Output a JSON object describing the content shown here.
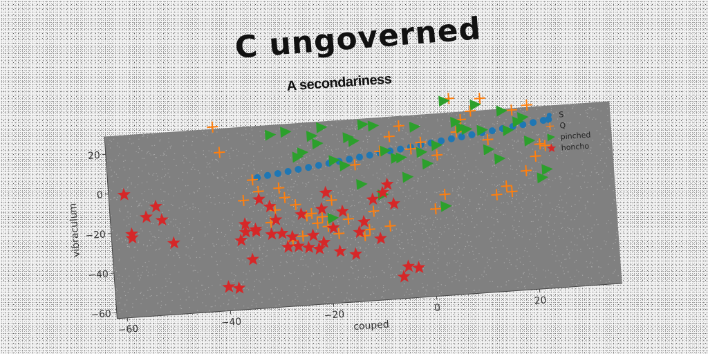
{
  "title": "C ungoverned",
  "subtitle": "A secondariness",
  "chart_data": {
    "type": "scatter",
    "title": "C ungoverned",
    "subtitle": "A secondariness",
    "xlabel": "couped",
    "ylabel": "vibraculum",
    "xlim": [
      -62,
      36
    ],
    "ylim": [
      -63,
      29
    ],
    "xticks": [
      -60,
      -40,
      -20,
      0,
      20
    ],
    "yticks": [
      -60,
      -40,
      -20,
      0,
      20
    ],
    "grid": false,
    "legend_position": "top-right",
    "series": [
      {
        "name": "S",
        "color": "#1f77b4",
        "marker": "circle",
        "x": [
          -33,
          -31,
          -29,
          -27,
          -25,
          -23,
          -21,
          -19,
          -17,
          -15,
          -13,
          -11,
          -9,
          -7,
          -5,
          -3,
          -1,
          1,
          3,
          5,
          7,
          9,
          11,
          13,
          15,
          17,
          19,
          21,
          23,
          24
        ],
        "y": [
          3,
          3.7,
          4.3,
          5,
          5.7,
          6.3,
          7,
          7.7,
          8.3,
          9,
          9.7,
          10.3,
          11,
          11.7,
          12.3,
          13,
          13.7,
          14.3,
          15,
          15.7,
          16.3,
          17,
          17.7,
          18.3,
          19,
          19.7,
          20.3,
          21,
          21.7,
          22
        ]
      },
      {
        "name": "Q",
        "color": "#ff7f0e",
        "marker": "plus",
        "x": [
          -41,
          -40,
          -34,
          -33,
          -30,
          -28,
          -27,
          -25,
          -23,
          -22,
          -20,
          -18,
          -16,
          -13,
          -11,
          -9,
          -7,
          -5,
          -3,
          -1,
          1,
          3,
          5,
          7,
          9,
          11,
          13,
          15,
          17,
          19,
          21,
          23,
          -36,
          -31,
          -29,
          -24,
          -19,
          -14,
          -8,
          2,
          6,
          12,
          16,
          20,
          22,
          -26,
          -21,
          -12
        ],
        "y": [
          30,
          17,
          2,
          -4,
          -14,
          -8,
          -30,
          -28,
          -17,
          -22,
          -24,
          -28,
          -21,
          -30,
          -18,
          12,
          19,
          24,
          12,
          15,
          -19,
          -12,
          36,
          25,
          29,
          35,
          -14,
          -10,
          28,
          -3,
          4,
          9,
          -8,
          -20,
          -3,
          -18,
          -11,
          6,
          -26,
          8,
          19,
          14,
          -13,
          30,
          10,
          -12,
          -19,
          -27
        ]
      },
      {
        "name": "pinched",
        "color": "#2ca02c",
        "marker": "triangle-right",
        "x": [
          -30,
          -27,
          -25,
          -22,
          -21,
          -18,
          -15,
          -12,
          -10,
          -8,
          -6,
          -4,
          -2,
          0,
          2,
          4,
          6,
          8,
          10,
          12,
          14,
          16,
          18,
          20,
          22,
          -24,
          -20,
          -16,
          -13,
          -9,
          -5,
          -1,
          3,
          7,
          11,
          15,
          19,
          23,
          -19,
          -14
        ],
        "y": [
          24,
          25,
          12,
          22,
          18,
          9,
          20,
          26,
          25,
          12,
          8,
          -2,
          23,
          4,
          13,
          35,
          24,
          20,
          32,
          9,
          4,
          18,
          22,
          12,
          -7,
          14,
          26,
          6,
          -4,
          -10,
          8,
          10,
          -18,
          21,
          19,
          28,
          24,
          -3,
          -20,
          18
        ]
      },
      {
        "name": "honcho",
        "color": "#d62728",
        "marker": "star",
        "x": [
          -59,
          -58,
          -58,
          -55,
          -53,
          -52,
          -50,
          -40,
          -38,
          -37,
          -36,
          -35,
          -34,
          -33,
          -31,
          -30,
          -29,
          -28,
          -27,
          -25,
          -24,
          -22,
          -21,
          -20,
          -19,
          -17,
          -15,
          -13,
          -11,
          -9,
          -8,
          -7,
          -5,
          -34,
          -36,
          -31,
          -26,
          -23,
          -21,
          -18,
          -14,
          -10,
          -6,
          -3
        ],
        "y": [
          -1,
          -21,
          -23,
          -13,
          -8,
          -15,
          -27,
          -51,
          -52,
          -28,
          -20,
          -38,
          -24,
          -8,
          -12,
          -19,
          -26,
          -33,
          -28,
          -17,
          -34,
          -35,
          -15,
          -7,
          -25,
          -17,
          -39,
          -23,
          -12,
          -9,
          -5,
          -15,
          -47,
          -23,
          -24,
          -26,
          -33,
          -28,
          -32,
          -37,
          -28,
          -32,
          -52,
          -48
        ]
      }
    ]
  }
}
